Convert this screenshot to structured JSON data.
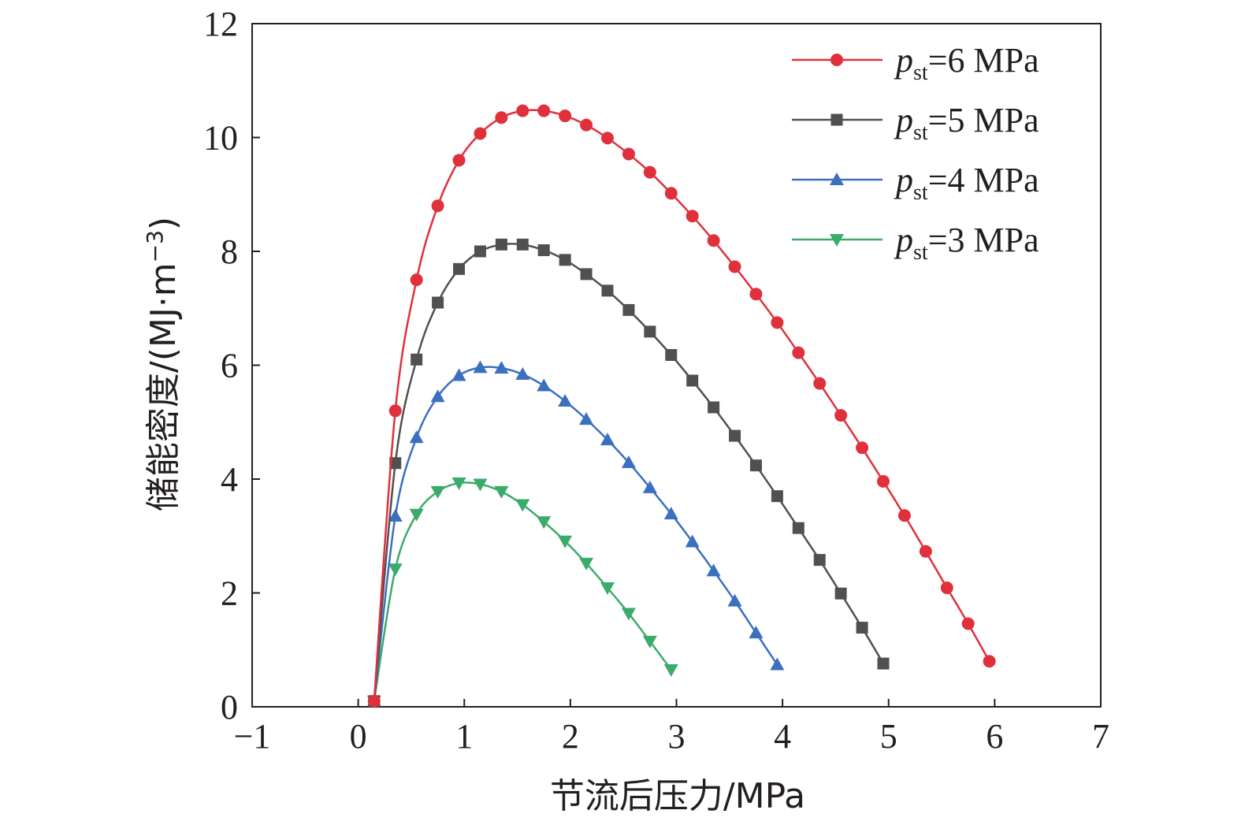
{
  "chart_data": {
    "type": "line",
    "xlabel": "节流后压力/MPa",
    "ylabel_main": "储能密度/(MJ·m",
    "ylabel_sup": "−3",
    "ylabel_close": ")",
    "xlim": [
      -1,
      7
    ],
    "ylim": [
      0,
      12
    ],
    "xticks": [
      -1,
      0,
      1,
      2,
      3,
      4,
      5,
      6,
      7
    ],
    "xtick_labels": [
      "−1",
      "0",
      "1",
      "2",
      "3",
      "4",
      "5",
      "6",
      "7"
    ],
    "yticks": [
      0,
      2,
      4,
      6,
      8,
      10,
      12
    ],
    "ytick_labels": [
      "0",
      "2",
      "4",
      "6",
      "8",
      "10",
      "12"
    ],
    "grid": false,
    "legend_position": "top-right",
    "series": [
      {
        "name": "pst=6 MPa",
        "legend_p": "p",
        "legend_sub": "st",
        "legend_rest": "=6 MPa",
        "color": "#e0303c",
        "marker": "circle",
        "x": [
          0.15,
          0.35,
          0.55,
          0.75,
          0.95,
          1.15,
          1.35,
          1.55,
          1.75,
          1.95,
          2.15,
          2.35,
          2.55,
          2.75,
          2.95,
          3.15,
          3.35,
          3.55,
          3.75,
          3.95,
          4.15,
          4.35,
          4.55,
          4.75,
          4.95,
          5.15,
          5.35,
          5.55,
          5.75,
          5.95
        ],
        "y": [
          0.1,
          5.2,
          7.5,
          8.8,
          9.6,
          10.07,
          10.35,
          10.47,
          10.47,
          10.38,
          10.22,
          9.99,
          9.71,
          9.39,
          9.02,
          8.62,
          8.19,
          7.73,
          7.25,
          6.75,
          6.22,
          5.68,
          5.12,
          4.55,
          3.96,
          3.36,
          2.73,
          2.09,
          1.46,
          0.8
        ]
      },
      {
        "name": "pst=5 MPa",
        "legend_p": "p",
        "legend_sub": "st",
        "legend_rest": "=5 MPa",
        "color": "#505050",
        "marker": "square",
        "x": [
          0.15,
          0.35,
          0.55,
          0.75,
          0.95,
          1.15,
          1.35,
          1.55,
          1.75,
          1.95,
          2.15,
          2.35,
          2.55,
          2.75,
          2.95,
          3.15,
          3.35,
          3.55,
          3.75,
          3.95,
          4.15,
          4.35,
          4.55,
          4.75,
          4.95
        ],
        "y": [
          0.1,
          4.28,
          6.1,
          7.1,
          7.69,
          8.0,
          8.12,
          8.12,
          8.02,
          7.85,
          7.6,
          7.31,
          6.97,
          6.59,
          6.18,
          5.73,
          5.26,
          4.76,
          4.24,
          3.7,
          3.14,
          2.58,
          1.99,
          1.39,
          0.76
        ]
      },
      {
        "name": "pst=4 MPa",
        "legend_p": "p",
        "legend_sub": "st",
        "legend_rest": "=4 MPa",
        "color": "#3b6fc0",
        "marker": "triangle-up",
        "x": [
          0.15,
          0.35,
          0.55,
          0.75,
          0.95,
          1.15,
          1.35,
          1.55,
          1.75,
          1.95,
          2.15,
          2.35,
          2.55,
          2.75,
          2.95,
          3.15,
          3.35,
          3.55,
          3.75,
          3.95
        ],
        "y": [
          0.1,
          3.35,
          4.73,
          5.45,
          5.82,
          5.96,
          5.95,
          5.84,
          5.64,
          5.37,
          5.05,
          4.69,
          4.29,
          3.85,
          3.39,
          2.9,
          2.39,
          1.86,
          1.3,
          0.74
        ]
      },
      {
        "name": "pst=3 MPa",
        "legend_p": "p",
        "legend_sub": "st",
        "legend_rest": "=3 MPa",
        "color": "#3aab6a",
        "marker": "triangle-down",
        "x": [
          0.15,
          0.35,
          0.55,
          0.75,
          0.95,
          1.15,
          1.35,
          1.55,
          1.75,
          1.95,
          2.15,
          2.35,
          2.55,
          2.75,
          2.95
        ],
        "y": [
          0.1,
          2.42,
          3.38,
          3.78,
          3.93,
          3.91,
          3.78,
          3.55,
          3.25,
          2.91,
          2.52,
          2.09,
          1.64,
          1.15,
          0.65
        ]
      }
    ]
  }
}
